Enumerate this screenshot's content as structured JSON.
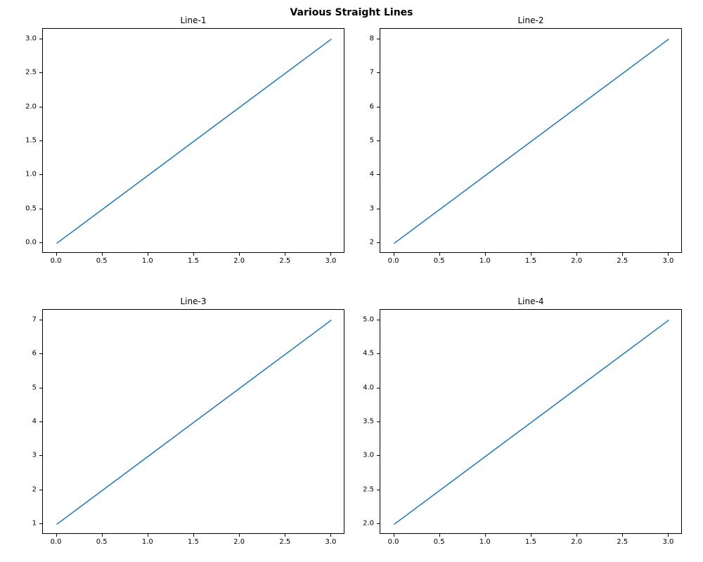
{
  "suptitle": "Various Straight Lines",
  "suptitle_fontsize": 14,
  "suptitle_fontweight": "bold",
  "background_color": "#ffffff",
  "line_color": "#1f77b4",
  "line_width": 1.5,
  "tick_color": "#000000",
  "frame_color": "#000000",
  "tick_fontsize": 10,
  "title_fontsize": 12,
  "layout": {
    "rows": 2,
    "cols": 2,
    "hspace": 0.25,
    "wspace": 0.2
  },
  "subplots": [
    {
      "title": "Line-1",
      "type": "line",
      "x": [
        0,
        1,
        2,
        3
      ],
      "y": [
        0,
        1,
        2,
        3
      ],
      "xlim": [
        -0.15,
        3.15
      ],
      "ylim": [
        -0.15,
        3.15
      ],
      "xticks": [
        0.0,
        0.5,
        1.0,
        1.5,
        2.0,
        2.5,
        3.0
      ],
      "xtick_labels": [
        "0.0",
        "0.5",
        "1.0",
        "1.5",
        "2.0",
        "2.5",
        "3.0"
      ],
      "yticks": [
        0.0,
        0.5,
        1.0,
        1.5,
        2.0,
        2.5,
        3.0
      ],
      "ytick_labels": [
        "0.0",
        "0.5",
        "1.0",
        "1.5",
        "2.0",
        "2.5",
        "3.0"
      ]
    },
    {
      "title": "Line-2",
      "type": "line",
      "x": [
        0,
        1,
        2,
        3
      ],
      "y": [
        2,
        4,
        6,
        8
      ],
      "xlim": [
        -0.15,
        3.15
      ],
      "ylim": [
        1.7,
        8.3
      ],
      "xticks": [
        0.0,
        0.5,
        1.0,
        1.5,
        2.0,
        2.5,
        3.0
      ],
      "xtick_labels": [
        "0.0",
        "0.5",
        "1.0",
        "1.5",
        "2.0",
        "2.5",
        "3.0"
      ],
      "yticks": [
        2,
        3,
        4,
        5,
        6,
        7,
        8
      ],
      "ytick_labels": [
        "2",
        "3",
        "4",
        "5",
        "6",
        "7",
        "8"
      ]
    },
    {
      "title": "Line-3",
      "type": "line",
      "x": [
        0,
        1,
        2,
        3
      ],
      "y": [
        1,
        3,
        5,
        7
      ],
      "xlim": [
        -0.15,
        3.15
      ],
      "ylim": [
        0.7,
        7.3
      ],
      "xticks": [
        0.0,
        0.5,
        1.0,
        1.5,
        2.0,
        2.5,
        3.0
      ],
      "xtick_labels": [
        "0.0",
        "0.5",
        "1.0",
        "1.5",
        "2.0",
        "2.5",
        "3.0"
      ],
      "yticks": [
        1,
        2,
        3,
        4,
        5,
        6,
        7
      ],
      "ytick_labels": [
        "1",
        "2",
        "3",
        "4",
        "5",
        "6",
        "7"
      ]
    },
    {
      "title": "Line-4",
      "type": "line",
      "x": [
        0,
        1,
        2,
        3
      ],
      "y": [
        2,
        3,
        4,
        5
      ],
      "xlim": [
        -0.15,
        3.15
      ],
      "ylim": [
        1.85,
        5.15
      ],
      "xticks": [
        0.0,
        0.5,
        1.0,
        1.5,
        2.0,
        2.5,
        3.0
      ],
      "xtick_labels": [
        "0.0",
        "0.5",
        "1.0",
        "1.5",
        "2.0",
        "2.5",
        "3.0"
      ],
      "yticks": [
        2.0,
        2.5,
        3.0,
        3.5,
        4.0,
        4.5,
        5.0
      ],
      "ytick_labels": [
        "2.0",
        "2.5",
        "3.0",
        "3.5",
        "4.0",
        "4.5",
        "5.0"
      ]
    }
  ]
}
